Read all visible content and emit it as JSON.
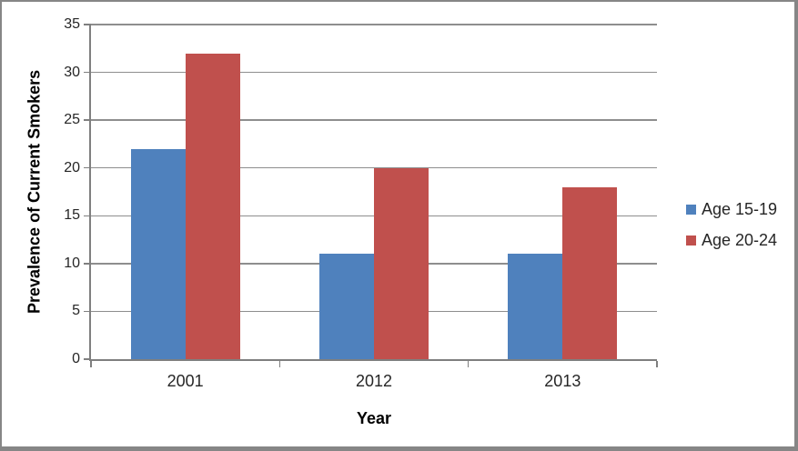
{
  "chart_data": {
    "type": "bar",
    "categories": [
      "2001",
      "2012",
      "2013"
    ],
    "series": [
      {
        "name": "Age 15-19",
        "color": "#4F81BD",
        "values": [
          22,
          11,
          11
        ]
      },
      {
        "name": "Age 20-24",
        "color": "#C0504D",
        "values": [
          32,
          20,
          18
        ]
      }
    ],
    "xlabel": "Year",
    "ylabel": "Prevalence of Current Smokers",
    "ylim": [
      0,
      35
    ],
    "ytick_step": 5,
    "yticks": [
      0,
      5,
      10,
      15,
      20,
      25,
      30,
      35
    ],
    "grid": true,
    "legend_position": "right",
    "gridline_color": "#8E8E8E",
    "axis_color": "#7F7F7F",
    "text_color": "#262626"
  }
}
